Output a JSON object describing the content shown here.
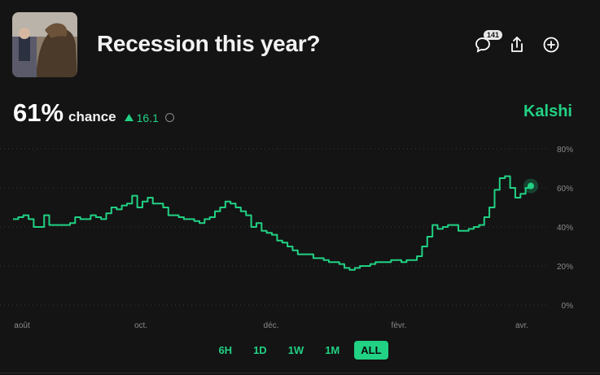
{
  "header": {
    "title": "Recession this year?",
    "comment_count": "141",
    "image_alt": "bear statue photo"
  },
  "stats": {
    "percent": "61%",
    "chance_label": "chance",
    "delta": "16.1",
    "brand": "Kalshi"
  },
  "colors": {
    "accent": "#21d184",
    "background": "#141414"
  },
  "chart_data": {
    "type": "line",
    "x_tick_labels": [
      "août",
      "oct.",
      "déc.",
      "févr.",
      "avr."
    ],
    "y_tick_labels": [
      "80%",
      "60%",
      "40%",
      "20%",
      "0%"
    ],
    "ylim": [
      0,
      80
    ],
    "grid": true,
    "series": [
      {
        "values": [
          44,
          45,
          46,
          44,
          40,
          40,
          46,
          41,
          41,
          41,
          41,
          42,
          45,
          44,
          44,
          46,
          45,
          44,
          47,
          50,
          49,
          51,
          52,
          56,
          50,
          53,
          55,
          52,
          52,
          50,
          46,
          46,
          45,
          44,
          44,
          43,
          42,
          44,
          45,
          48,
          50,
          53,
          52,
          50,
          48,
          46,
          40,
          42,
          38,
          37,
          36,
          33,
          32,
          30,
          28,
          26,
          26,
          26,
          24,
          24,
          23,
          22,
          22,
          21,
          19,
          18,
          19,
          20,
          20,
          21,
          22,
          22,
          22,
          23,
          23,
          22,
          23,
          23,
          25,
          30,
          35,
          41,
          39,
          40,
          41,
          41,
          38,
          38,
          39,
          40,
          41,
          45,
          50,
          59,
          65,
          66,
          60,
          55,
          57,
          60,
          61
        ]
      }
    ],
    "annotations": []
  },
  "ranges": [
    "6H",
    "1D",
    "1W",
    "1M",
    "ALL"
  ],
  "active_range": "ALL"
}
